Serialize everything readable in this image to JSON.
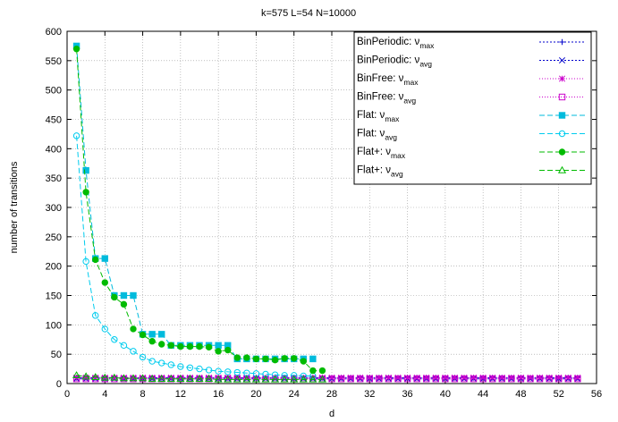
{
  "chart_data": {
    "type": "line",
    "title": "k=575 L=54  N=10000",
    "xlabel": "d",
    "ylabel": "number of transitions",
    "xlim": [
      0,
      56
    ],
    "ylim": [
      0,
      600
    ],
    "xticks": [
      0,
      4,
      8,
      12,
      16,
      20,
      24,
      28,
      32,
      36,
      40,
      44,
      48,
      52,
      56
    ],
    "yticks": [
      0,
      50,
      100,
      150,
      200,
      250,
      300,
      350,
      400,
      450,
      500,
      550,
      600
    ],
    "grid": true,
    "legend_position": "top-right",
    "series": [
      {
        "name": "BinPeriodic: ",
        "name_main": "BinPeriodic: ν",
        "name_sub": "max",
        "color": "#0000cc",
        "marker": "plus",
        "dash": "2,2",
        "x": [
          1,
          2,
          3,
          4,
          5,
          6,
          7,
          8,
          9,
          10,
          11,
          12,
          13,
          14,
          15,
          16,
          17,
          18,
          19,
          20,
          21,
          22,
          23,
          24,
          25,
          26,
          27,
          28,
          29,
          30,
          31,
          32,
          33,
          34,
          35,
          36,
          37,
          38,
          39,
          40,
          41,
          42,
          43,
          44,
          45,
          46,
          47,
          48,
          49,
          50,
          51,
          52,
          53,
          54
        ],
        "y": [
          10,
          10,
          10,
          10,
          10,
          10,
          10,
          10,
          10,
          10,
          10,
          10,
          10,
          10,
          10,
          10,
          10,
          10,
          10,
          10,
          10,
          10,
          10,
          10,
          10,
          10,
          10,
          10,
          10,
          10,
          10,
          10,
          10,
          10,
          10,
          10,
          10,
          10,
          10,
          10,
          10,
          10,
          10,
          10,
          10,
          10,
          10,
          10,
          10,
          10,
          10,
          10,
          10,
          10
        ]
      },
      {
        "name": "BinPeriodic: ",
        "name_main": "BinPeriodic: ν",
        "name_sub": "avg",
        "color": "#0000cc",
        "marker": "cross",
        "dash": "2,2",
        "x": [
          1,
          2,
          3,
          4,
          5,
          6,
          7,
          8,
          9,
          10,
          11,
          12,
          13,
          14,
          15,
          16,
          17,
          18,
          19,
          20,
          21,
          22,
          23,
          24,
          25,
          26,
          27,
          28,
          29,
          30,
          31,
          32,
          33,
          34,
          35,
          36,
          37,
          38,
          39,
          40,
          41,
          42,
          43,
          44,
          45,
          46,
          47,
          48,
          49,
          50,
          51,
          52,
          53,
          54
        ],
        "y": [
          8,
          8,
          8,
          8,
          8,
          8,
          8,
          8,
          8,
          8,
          8,
          8,
          8,
          8,
          8,
          8,
          8,
          8,
          8,
          8,
          8,
          8,
          8,
          8,
          8,
          8,
          8,
          8,
          8,
          8,
          8,
          8,
          8,
          8,
          8,
          8,
          8,
          8,
          8,
          8,
          8,
          8,
          8,
          8,
          8,
          8,
          8,
          8,
          8,
          8,
          8,
          8,
          8,
          8
        ]
      },
      {
        "name": "BinFree: ",
        "name_main": "BinFree: ν",
        "name_sub": "max",
        "color": "#cc00cc",
        "marker": "star",
        "dash": "1,2",
        "x": [
          1,
          2,
          3,
          4,
          5,
          6,
          7,
          8,
          9,
          10,
          11,
          12,
          13,
          14,
          15,
          16,
          17,
          18,
          19,
          20,
          21,
          22,
          23,
          24,
          25,
          26,
          27,
          28,
          29,
          30,
          31,
          32,
          33,
          34,
          35,
          36,
          37,
          38,
          39,
          40,
          41,
          42,
          43,
          44,
          45,
          46,
          47,
          48,
          49,
          50,
          51,
          52,
          53,
          54
        ],
        "y": [
          10,
          10,
          10,
          10,
          10,
          10,
          10,
          10,
          10,
          10,
          10,
          10,
          10,
          10,
          10,
          10,
          10,
          10,
          10,
          10,
          10,
          10,
          10,
          10,
          10,
          10,
          10,
          10,
          10,
          10,
          10,
          10,
          10,
          10,
          10,
          10,
          10,
          10,
          10,
          10,
          10,
          10,
          10,
          10,
          10,
          10,
          10,
          10,
          10,
          10,
          10,
          10,
          10,
          10
        ]
      },
      {
        "name": "BinFree: ",
        "name_main": "BinFree: ν",
        "name_sub": "avg",
        "color": "#cc00cc",
        "marker": "square-open",
        "dash": "1,2",
        "x": [
          1,
          2,
          3,
          4,
          5,
          6,
          7,
          8,
          9,
          10,
          11,
          12,
          13,
          14,
          15,
          16,
          17,
          18,
          19,
          20,
          21,
          22,
          23,
          24,
          25,
          26,
          27,
          28,
          29,
          30,
          31,
          32,
          33,
          34,
          35,
          36,
          37,
          38,
          39,
          40,
          41,
          42,
          43,
          44,
          45,
          46,
          47,
          48,
          49,
          50,
          51,
          52,
          53,
          54
        ],
        "y": [
          8,
          8,
          8,
          8,
          8,
          8,
          8,
          8,
          8,
          8,
          8,
          8,
          8,
          8,
          8,
          8,
          8,
          8,
          8,
          8,
          8,
          8,
          8,
          8,
          8,
          8,
          8,
          8,
          8,
          8,
          8,
          8,
          8,
          8,
          8,
          8,
          8,
          8,
          8,
          8,
          8,
          8,
          8,
          8,
          8,
          8,
          8,
          8,
          8,
          8,
          8,
          8,
          8,
          8
        ]
      },
      {
        "name": "Flat: ",
        "name_main": "Flat: ν",
        "name_sub": "max",
        "color": "#00bbdd",
        "marker": "square-filled",
        "dash": "6,3",
        "x": [
          1,
          2,
          3,
          4,
          5,
          6,
          7,
          8,
          9,
          10,
          11,
          12,
          13,
          14,
          15,
          16,
          17,
          18,
          19,
          20,
          21,
          22,
          23,
          24,
          25,
          26
        ],
        "y": [
          575,
          363,
          213,
          213,
          150,
          150,
          150,
          84,
          84,
          84,
          65,
          65,
          65,
          65,
          65,
          65,
          65,
          42,
          42,
          42,
          42,
          42,
          42,
          42,
          42,
          42
        ]
      },
      {
        "name": "Flat: ",
        "name_main": "Flat: ν",
        "name_sub": "avg",
        "color": "#00ccee",
        "marker": "circle-open",
        "dash": "6,3",
        "x": [
          1,
          2,
          3,
          4,
          5,
          6,
          7,
          8,
          9,
          10,
          11,
          12,
          13,
          14,
          15,
          16,
          17,
          18,
          19,
          20,
          21,
          22,
          23,
          24,
          25,
          26
        ],
        "y": [
          422,
          208,
          116,
          93,
          75,
          65,
          55,
          45,
          38,
          35,
          32,
          29,
          27,
          25,
          23,
          21,
          20,
          19,
          18,
          17,
          16,
          15,
          14,
          14,
          13,
          13
        ]
      },
      {
        "name": "Flat+: ",
        "name_main": "Flat+: ν",
        "name_sub": "max",
        "color": "#00bb00",
        "marker": "circle-filled",
        "dash": "6,3",
        "x": [
          1,
          2,
          3,
          4,
          5,
          6,
          7,
          8,
          9,
          10,
          11,
          12,
          13,
          14,
          15,
          16,
          17,
          18,
          19,
          20,
          21,
          22,
          23,
          24,
          25,
          26,
          27
        ],
        "y": [
          570,
          326,
          211,
          172,
          147,
          135,
          93,
          83,
          72,
          67,
          65,
          63,
          63,
          63,
          62,
          55,
          57,
          44,
          44,
          42,
          42,
          40,
          43,
          43,
          38,
          22,
          22
        ]
      },
      {
        "name": "Flat+: ",
        "name_main": "Flat+: ν",
        "name_sub": "avg",
        "color": "#00bb00",
        "marker": "triangle-open",
        "dash": "6,3",
        "x": [
          1,
          2,
          3,
          4,
          5,
          6,
          7,
          8,
          9,
          10,
          11,
          12,
          13,
          14,
          15,
          16,
          17,
          18,
          19,
          20,
          21,
          22,
          23,
          24,
          25,
          26,
          27
        ],
        "y": [
          14,
          12,
          11,
          10,
          10,
          9,
          9,
          9,
          8,
          8,
          8,
          8,
          8,
          8,
          8,
          7,
          7,
          7,
          7,
          7,
          7,
          7,
          7,
          7,
          7,
          7,
          7
        ]
      }
    ]
  }
}
